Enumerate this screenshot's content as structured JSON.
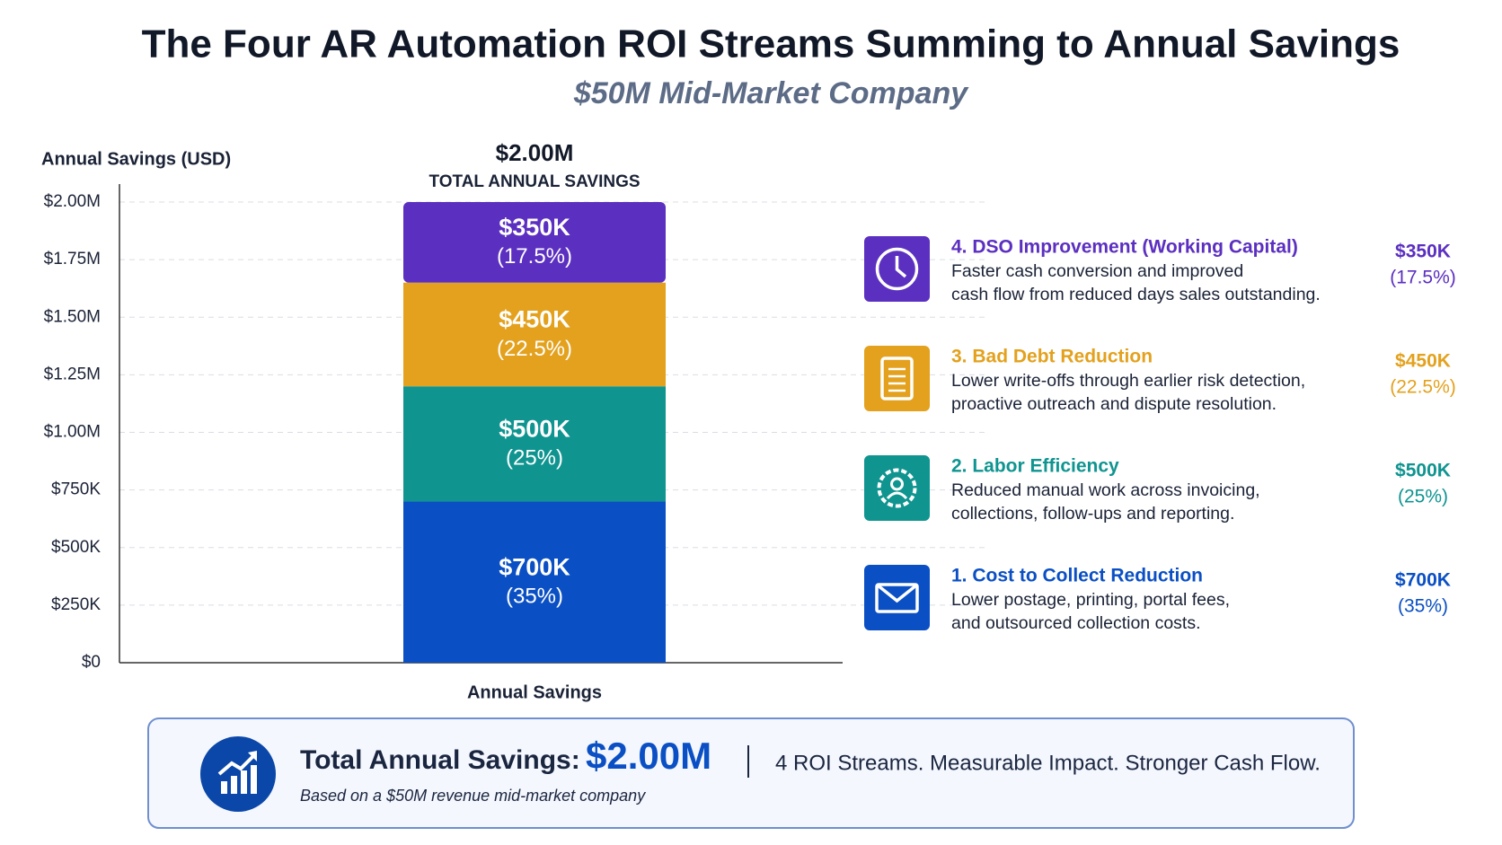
{
  "chart_data": {
    "type": "stacked_bar",
    "title": "The Four AR Automation ROI Streams Summing to Annual Savings",
    "subtitle": "$50M Mid-Market Company",
    "ylabel": "Annual Savings (USD)",
    "categories": [
      "Annual Savings"
    ],
    "total": 2000000,
    "total_label": "$2.00M",
    "total_caption": "TOTAL ANNUAL SAVINGS",
    "ylim": [
      0,
      2000000
    ],
    "yticks": [
      {
        "value": 0,
        "label": "$0"
      },
      {
        "value": 250000,
        "label": "$250K"
      },
      {
        "value": 500000,
        "label": "$500K"
      },
      {
        "value": 750000,
        "label": "$750K"
      },
      {
        "value": 1000000,
        "label": "$1.00M"
      },
      {
        "value": 1250000,
        "label": "$1.25M"
      },
      {
        "value": 1500000,
        "label": "$1.50M"
      },
      {
        "value": 1750000,
        "label": "$1.75M"
      },
      {
        "value": 2000000,
        "label": "$2.00M"
      }
    ],
    "grid": true,
    "series": [
      {
        "name": "1. Cost to Collect Reduction",
        "color": "#0a4fc4",
        "values": [
          700000
        ],
        "value_labels": [
          "$700K"
        ],
        "share": [
          35
        ],
        "share_labels": [
          "(35%)"
        ],
        "description": [
          "Lower postage, printing, portal fees,",
          "and outsourced collection costs."
        ]
      },
      {
        "name": "2. Labor Efficiency",
        "color": "#0f9490",
        "values": [
          500000
        ],
        "value_labels": [
          "$500K"
        ],
        "share": [
          25
        ],
        "share_labels": [
          "(25%)"
        ],
        "description": [
          "Reduced manual work across invoicing,",
          "collections, follow-ups and reporting."
        ]
      },
      {
        "name": "3. Bad Debt Reduction",
        "color": "#e3a11d",
        "values": [
          450000
        ],
        "value_labels": [
          "$450K"
        ],
        "share": [
          22.5
        ],
        "share_labels": [
          "(22.5%)"
        ],
        "description": [
          "Lower write-offs through earlier risk detection,",
          "proactive outreach and dispute resolution."
        ]
      },
      {
        "name": "4. DSO Improvement (Working Capital)",
        "color": "#5b2fc0",
        "values": [
          350000
        ],
        "value_labels": [
          "$350K"
        ],
        "share": [
          17.5
        ],
        "share_labels": [
          "(17.5%)"
        ],
        "description": [
          "Faster cash conversion and improved",
          "cash flow from reduced days sales outstanding."
        ]
      }
    ]
  },
  "footer": {
    "label": "Total Annual Savings:",
    "tagline": "4 ROI Streams. Measurable Impact. Stronger Cash Flow.",
    "note": "Based on a $50M revenue mid-market company"
  }
}
